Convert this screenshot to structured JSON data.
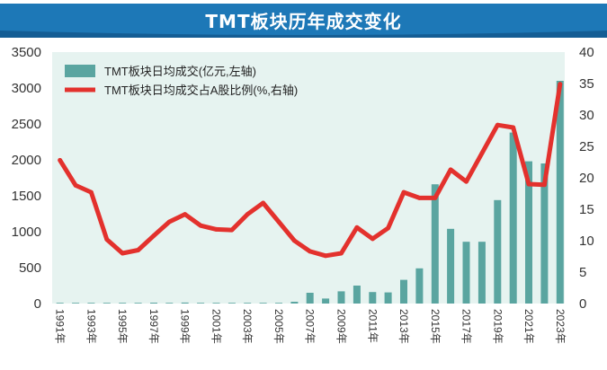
{
  "chart_data": {
    "type": "bar+line",
    "title": "TMT板块历年成交变化",
    "x": [
      "1991",
      "1992",
      "1993",
      "1994",
      "1995",
      "1996",
      "1997",
      "1998",
      "1999",
      "2000",
      "2001",
      "2002",
      "2003",
      "2004",
      "2005",
      "2006",
      "2007",
      "2008",
      "2009",
      "2010",
      "2011",
      "2012",
      "2013",
      "2014",
      "2015",
      "2016",
      "2017",
      "2018",
      "2019",
      "2020",
      "2021",
      "2022",
      "2023"
    ],
    "x_tick_labels": [
      "1991年",
      "1993年",
      "1995年",
      "1997年",
      "1999年",
      "2001年",
      "2003年",
      "2005年",
      "2007年",
      "2009年",
      "2011年",
      "2013年",
      "2015年",
      "2017年",
      "2019年",
      "2021年",
      "2023年"
    ],
    "series": [
      {
        "name": "TMT板块日均成交(亿元,左轴)",
        "type": "bar",
        "axis": "left",
        "color": "#5aa5a0",
        "values": [
          0,
          0,
          2,
          3,
          5,
          8,
          12,
          10,
          14,
          8,
          9,
          8,
          10,
          10,
          8,
          25,
          150,
          70,
          170,
          250,
          160,
          155,
          330,
          490,
          1660,
          1040,
          860,
          860,
          1440,
          2380,
          1980,
          1950,
          3100
        ]
      },
      {
        "name": "TMT板块日均成交占A股比例(%,右轴)",
        "type": "line",
        "axis": "right",
        "color": "#e3312d",
        "values": [
          22.8,
          18.8,
          17.7,
          10.2,
          8.0,
          8.5,
          10.8,
          13.0,
          14.2,
          12.4,
          11.8,
          11.7,
          14.2,
          16.0,
          13.0,
          10.0,
          8.3,
          7.6,
          8.0,
          12.1,
          10.3,
          12.0,
          17.7,
          16.8,
          16.8,
          21.3,
          19.4,
          23.9,
          28.4,
          28.0,
          19.0,
          18.9,
          34.9
        ]
      }
    ],
    "y_left": {
      "min": 0,
      "max": 3500,
      "ticks": [
        "0",
        "500",
        "1000",
        "1500",
        "2000",
        "2500",
        "3000",
        "3500"
      ]
    },
    "y_right": {
      "min": 0,
      "max": 40,
      "ticks": [
        "0",
        "5",
        "10",
        "15",
        "20",
        "25",
        "30",
        "35",
        "40"
      ]
    },
    "legend_position": "top-left",
    "grid": false,
    "colors": {
      "plot_bg": "#e6f3f0",
      "title_band": "#1d78b7",
      "axis_text": "#333333"
    }
  }
}
